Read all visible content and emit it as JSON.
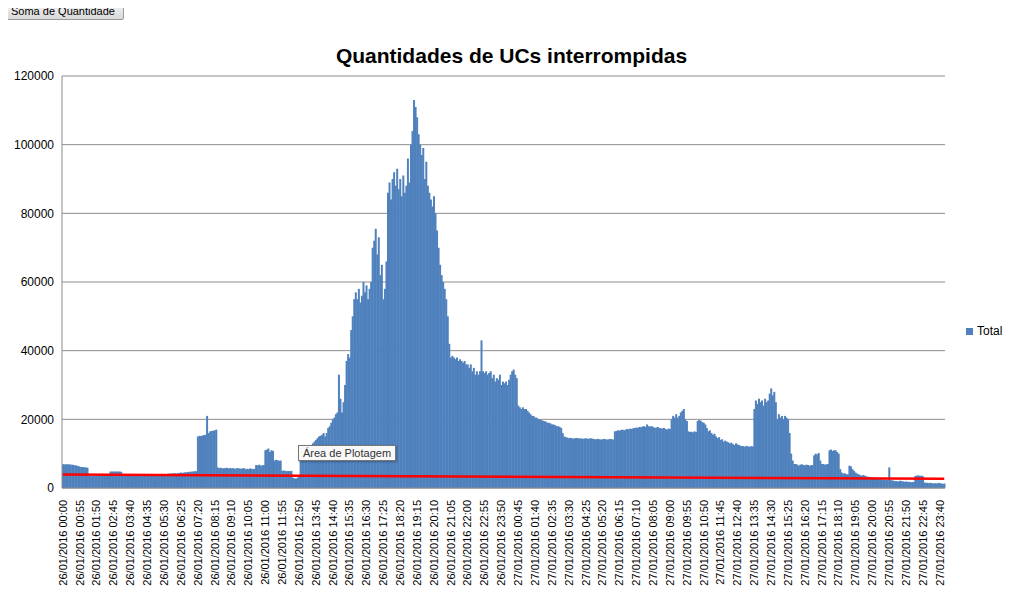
{
  "chart_data": {
    "type": "bar",
    "title": "Quantidades de UCs interrompidas",
    "annotations": [
      "Soma de Quantidade",
      "Área de Plotagem"
    ],
    "categories": [
      "26/01/2016 00:00",
      null,
      null,
      null,
      null,
      null,
      null,
      null,
      null,
      null,
      null,
      "26/01/2016 00:55",
      null,
      null,
      null,
      null,
      null,
      null,
      null,
      null,
      null,
      null,
      "26/01/2016 01:50",
      null,
      null,
      null,
      null,
      null,
      null,
      null,
      null,
      null,
      null,
      "26/01/2016 02:45",
      null,
      null,
      null,
      null,
      null,
      null,
      null,
      null,
      null,
      null,
      "26/01/2016 03:40",
      null,
      null,
      null,
      null,
      null,
      null,
      null,
      null,
      null,
      null,
      "26/01/2016 04:35",
      null,
      null,
      null,
      null,
      null,
      null,
      null,
      null,
      null,
      null,
      "26/01/2016 05:30",
      null,
      null,
      null,
      null,
      null,
      null,
      null,
      null,
      null,
      null,
      "26/01/2016 06:25",
      null,
      null,
      null,
      null,
      null,
      null,
      null,
      null,
      null,
      null,
      "26/01/2016 07:20",
      null,
      null,
      null,
      null,
      null,
      null,
      null,
      null,
      null,
      null,
      "26/01/2016 08:15",
      null,
      null,
      null,
      null,
      null,
      null,
      null,
      null,
      null,
      null,
      "26/01/2016 09:10",
      null,
      null,
      null,
      null,
      null,
      null,
      null,
      null,
      null,
      null,
      "26/01/2016 10:05",
      null,
      null,
      null,
      null,
      null,
      null,
      null,
      null,
      null,
      null,
      "26/01/2016 11:00",
      null,
      null,
      null,
      null,
      null,
      null,
      null,
      null,
      null,
      null,
      "26/01/2016 11:55",
      null,
      null,
      null,
      null,
      null,
      null,
      null,
      null,
      null,
      null,
      "26/01/2016 12:50",
      null,
      null,
      null,
      null,
      null,
      null,
      null,
      null,
      null,
      null,
      "26/01/2016 13:45",
      null,
      null,
      null,
      null,
      null,
      null,
      null,
      null,
      null,
      null,
      "26/01/2016 14:40",
      null,
      null,
      null,
      null,
      null,
      null,
      null,
      null,
      null,
      null,
      "26/01/2016 15:35",
      null,
      null,
      null,
      null,
      null,
      null,
      null,
      null,
      null,
      null,
      "26/01/2016 16:30",
      null,
      null,
      null,
      null,
      null,
      null,
      null,
      null,
      null,
      null,
      "26/01/2016 17:25",
      null,
      null,
      null,
      null,
      null,
      null,
      null,
      null,
      null,
      null,
      "26/01/2016 18:20",
      null,
      null,
      null,
      null,
      null,
      null,
      null,
      null,
      null,
      null,
      "26/01/2016 19:15",
      null,
      null,
      null,
      null,
      null,
      null,
      null,
      null,
      null,
      null,
      "26/01/2016 20:10",
      null,
      null,
      null,
      null,
      null,
      null,
      null,
      null,
      null,
      null,
      "26/01/2016 21:05",
      null,
      null,
      null,
      null,
      null,
      null,
      null,
      null,
      null,
      null,
      "26/01/2016 22:00",
      null,
      null,
      null,
      null,
      null,
      null,
      null,
      null,
      null,
      null,
      "26/01/2016 22:55",
      null,
      null,
      null,
      null,
      null,
      null,
      null,
      null,
      null,
      null,
      "26/01/2016 23:50",
      null,
      null,
      null,
      null,
      null,
      null,
      null,
      null,
      null,
      null,
      "27/01/2016 00:45",
      null,
      null,
      null,
      null,
      null,
      null,
      null,
      null,
      null,
      null,
      "27/01/2016 01:40",
      null,
      null,
      null,
      null,
      null,
      null,
      null,
      null,
      null,
      null,
      "27/01/2016 02:35",
      null,
      null,
      null,
      null,
      null,
      null,
      null,
      null,
      null,
      null,
      "27/01/2016 03:30",
      null,
      null,
      null,
      null,
      null,
      null,
      null,
      null,
      null,
      null,
      "27/01/2016 04:25",
      null,
      null,
      null,
      null,
      null,
      null,
      null,
      null,
      null,
      null,
      "27/01/2016 05:20",
      null,
      null,
      null,
      null,
      null,
      null,
      null,
      null,
      null,
      null,
      "27/01/2016 06:15",
      null,
      null,
      null,
      null,
      null,
      null,
      null,
      null,
      null,
      null,
      "27/01/2016 07:10",
      null,
      null,
      null,
      null,
      null,
      null,
      null,
      null,
      null,
      null,
      "27/01/2016 08:05",
      null,
      null,
      null,
      null,
      null,
      null,
      null,
      null,
      null,
      null,
      "27/01/2016 09:00",
      null,
      null,
      null,
      null,
      null,
      null,
      null,
      null,
      null,
      null,
      "27/01/2016 09:55",
      null,
      null,
      null,
      null,
      null,
      null,
      null,
      null,
      null,
      null,
      "27/01/2016 10:50",
      null,
      null,
      null,
      null,
      null,
      null,
      null,
      null,
      null,
      null,
      "27/01/2016 11:45",
      null,
      null,
      null,
      null,
      null,
      null,
      null,
      null,
      null,
      null,
      "27/01/2016 12:40",
      null,
      null,
      null,
      null,
      null,
      null,
      null,
      null,
      null,
      null,
      "27/01/2016 13:35",
      null,
      null,
      null,
      null,
      null,
      null,
      null,
      null,
      null,
      null,
      "27/01/2016 14:30",
      null,
      null,
      null,
      null,
      null,
      null,
      null,
      null,
      null,
      null,
      "27/01/2016 15:25",
      null,
      null,
      null,
      null,
      null,
      null,
      null,
      null,
      null,
      null,
      "27/01/2016 16:20",
      null,
      null,
      null,
      null,
      null,
      null,
      null,
      null,
      null,
      null,
      "27/01/2016 17:15",
      null,
      null,
      null,
      null,
      null,
      null,
      null,
      null,
      null,
      null,
      "27/01/2016 18:10",
      null,
      null,
      null,
      null,
      null,
      null,
      null,
      null,
      null,
      null,
      "27/01/2016 19:05",
      null,
      null,
      null,
      null,
      null,
      null,
      null,
      null,
      null,
      null,
      "27/01/2016 20:00",
      null,
      null,
      null,
      null,
      null,
      null,
      null,
      null,
      null,
      null,
      "27/01/2016 20:55",
      null,
      null,
      null,
      null,
      null,
      null,
      null,
      null,
      null,
      null,
      "27/01/2016 21:50",
      null,
      null,
      null,
      null,
      null,
      null,
      null,
      null,
      null,
      null,
      "27/01/2016 22:45",
      null,
      null,
      null,
      null,
      null,
      null,
      null,
      null,
      null,
      null,
      "27/01/2016 23:40",
      null,
      null,
      null
    ],
    "series": [
      {
        "name": "Total",
        "color": "#4f81bd",
        "values": [
          6900,
          6900,
          6900,
          6900,
          6900,
          6800,
          6800,
          6700,
          6600,
          6500,
          6400,
          6200,
          6100,
          6100,
          6000,
          6000,
          5900,
          3600,
          3500,
          3500,
          3500,
          3500,
          3500,
          3500,
          3500,
          3500,
          3500,
          3500,
          3500,
          3500,
          3500,
          4800,
          4800,
          4800,
          4800,
          4800,
          4800,
          4800,
          4700,
          3800,
          3700,
          3700,
          3700,
          3700,
          3800,
          3800,
          3800,
          3800,
          3900,
          3900,
          3800,
          3800,
          3900,
          3900,
          3800,
          3800,
          3900,
          3900,
          4000,
          4000,
          3900,
          3900,
          4000,
          4000,
          4100,
          4100,
          4000,
          4000,
          4100,
          4200,
          4200,
          4200,
          4300,
          4300,
          4200,
          4300,
          4400,
          4500,
          4400,
          4500,
          4600,
          4600,
          4700,
          4700,
          4800,
          4800,
          4900,
          4900,
          15000,
          15200,
          15100,
          15300,
          15400,
          15500,
          21000,
          16000,
          16500,
          16600,
          16700,
          16800,
          17000,
          6000,
          5800,
          5900,
          5700,
          5800,
          5800,
          5900,
          5700,
          5800,
          5700,
          5800,
          5600,
          5700,
          5800,
          5700,
          5600,
          5700,
          5800,
          5500,
          5600,
          5500,
          5700,
          5600,
          5500,
          5600,
          6700,
          6600,
          6800,
          6500,
          6600,
          6700,
          11000,
          11200,
          11500,
          10500,
          11000,
          10800,
          8000,
          8200,
          8100,
          7900,
          8000,
          5000,
          5100,
          5000,
          4900,
          5000,
          4900,
          5000,
          3000,
          2800,
          2700,
          3000,
          3200,
          8800,
          9500,
          10000,
          10500,
          11000,
          11500,
          12000,
          12500,
          13000,
          13500,
          14000,
          14500,
          15000,
          15200,
          15500,
          16000,
          15000,
          16000,
          17500,
          18000,
          19000,
          20000,
          20500,
          21500,
          22000,
          33000,
          26000,
          22000,
          25000,
          30000,
          37000,
          39000,
          38000,
          46000,
          50000,
          55000,
          57000,
          55000,
          58000,
          54000,
          56000,
          60000,
          57000,
          59000,
          55000,
          58000,
          60000,
          70000,
          72000,
          75500,
          68000,
          73000,
          62000,
          65000,
          55000,
          58000,
          66000,
          86000,
          89000,
          84000,
          90000,
          92000,
          88000,
          93000,
          87000,
          90000,
          85000,
          91000,
          86000,
          88000,
          96000,
          89000,
          100000,
          104000,
          113000,
          111000,
          108000,
          103000,
          100000,
          97000,
          99000,
          90000,
          95000,
          88000,
          86000,
          84000,
          82000,
          85000,
          80000,
          75000,
          70000,
          65000,
          62000,
          60000,
          58000,
          55000,
          50000,
          42000,
          38000,
          38500,
          38000,
          37500,
          38000,
          37000,
          37500,
          37000,
          36500,
          37000,
          36000,
          36000,
          35000,
          36000,
          34000,
          35000,
          33000,
          34000,
          33000,
          34000,
          43000,
          34000,
          33500,
          34000,
          33000,
          33500,
          34000,
          32000,
          33000,
          31000,
          32000,
          31500,
          33000,
          30000,
          31000,
          30500,
          31000,
          30000,
          31500,
          33000,
          34000,
          34500,
          33000,
          32000,
          24000,
          23500,
          23000,
          23500,
          23000,
          23000,
          22500,
          22000,
          21500,
          21000,
          21000,
          20500,
          20500,
          20000,
          20000,
          19800,
          19600,
          19500,
          19300,
          19000,
          19000,
          18800,
          18500,
          18500,
          18300,
          18000,
          18000,
          17800,
          17500,
          16000,
          15000,
          14800,
          14700,
          14500,
          14600,
          14500,
          14400,
          14500,
          14600,
          14500,
          14400,
          14500,
          14300,
          14400,
          14500,
          14400,
          14300,
          14500,
          14400,
          14300,
          14200,
          14200,
          14300,
          14200,
          14100,
          14200,
          14300,
          14200,
          14100,
          14200,
          14300,
          14200,
          14100,
          16500,
          16600,
          16800,
          16700,
          16900,
          17000,
          16800,
          17000,
          17200,
          17100,
          17300,
          17200,
          17400,
          17500,
          17600,
          17500,
          17800,
          17700,
          17900,
          18000,
          17800,
          18500,
          18000,
          17900,
          18000,
          17800,
          17500,
          17600,
          17800,
          17500,
          17400,
          17300,
          17500,
          17200,
          17000,
          17300,
          17200,
          20000,
          21000,
          20500,
          21500,
          20500,
          21000,
          22000,
          22500,
          23000,
          20000,
          19500,
          16500,
          16300,
          16400,
          16200,
          16500,
          16300,
          19500,
          19800,
          19600,
          19200,
          19000,
          18500,
          17500,
          16500,
          16800,
          16000,
          15500,
          15800,
          15000,
          14500,
          14800,
          14000,
          14200,
          13500,
          13800,
          13500,
          13300,
          13000,
          13200,
          12800,
          12500,
          13000,
          12700,
          12500,
          12300,
          12200,
          12200,
          12000,
          12300,
          12100,
          12000,
          12200,
          12100,
          23000,
          25500,
          24500,
          26000,
          25000,
          25500,
          24000,
          26000,
          25000,
          25500,
          27500,
          29000,
          27000,
          28000,
          25000,
          20000,
          21500,
          20500,
          21000,
          20000,
          21000,
          20500,
          20000,
          16000,
          10000,
          8000,
          7000,
          7000,
          6800,
          6500,
          6800,
          6900,
          6700,
          6600,
          6800,
          6700,
          6500,
          6600,
          6700,
          9500,
          10000,
          9800,
          10200,
          8000,
          7000,
          7000,
          6800,
          6900,
          7000,
          11000,
          11200,
          10800,
          11000,
          11000,
          10500,
          10000,
          5500,
          4500,
          4200,
          4300,
          4000,
          4000,
          6500,
          6300,
          5500,
          5000,
          4500,
          4200,
          4000,
          3800,
          3500,
          3800,
          3600,
          3400,
          3300,
          3200,
          3100,
          3000,
          3000,
          2800,
          2900,
          2700,
          2600,
          2500,
          2400,
          2500,
          2400,
          2300,
          6000,
          2300,
          2200,
          2100,
          2000,
          2000,
          1900,
          2100,
          2000,
          1900,
          1800,
          1900,
          1800,
          1800,
          1700,
          1700,
          1800,
          3500,
          3600,
          3700,
          3500,
          3600,
          3400,
          1600,
          1500,
          1500,
          1400,
          1500,
          1400,
          1300,
          1400,
          1300,
          1500,
          1400,
          1300,
          1200,
          1300
        ]
      }
    ],
    "trendline": {
      "x": [
        0,
        575
      ],
      "values": [
        3900,
        2700
      ],
      "color": "#ff0000"
    },
    "ylim": [
      0,
      120000
    ],
    "yticks": [
      0,
      20000,
      40000,
      60000,
      80000,
      100000,
      120000
    ],
    "grid": true,
    "legend": "right"
  }
}
